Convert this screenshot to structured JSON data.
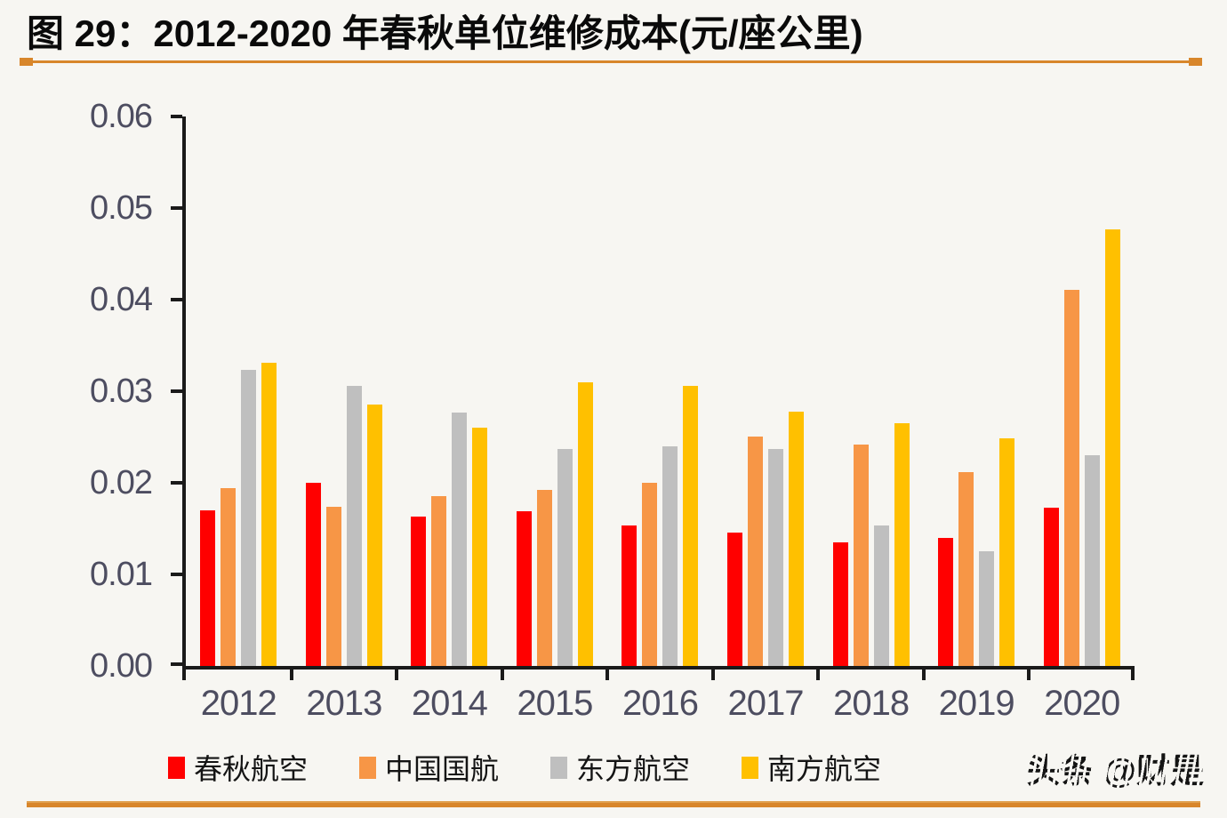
{
  "header": {
    "title": "图 29：2012-2020 年春秋单位维修成本(元/座公里)"
  },
  "watermark": {
    "text": "头条 @财是"
  },
  "colors": {
    "accent_rule": "#D8862B",
    "axis": "#1A1A1A",
    "tick_label": "#4D4D60",
    "background": "#F7F6F2",
    "series_red": "#FF0000",
    "series_orange": "#F79646",
    "series_gray": "#BFBFBF",
    "series_yellow": "#FFC000"
  },
  "chart_data": {
    "type": "bar",
    "title": "2012-2020 年春秋单位维修成本(元/座公里)",
    "xlabel": "",
    "ylabel": "",
    "categories": [
      "2012",
      "2013",
      "2014",
      "2015",
      "2016",
      "2017",
      "2018",
      "2019",
      "2020"
    ],
    "series": [
      {
        "name": "春秋航空",
        "color": "#FF0000",
        "values": [
          0.017,
          0.02,
          0.0163,
          0.0169,
          0.0153,
          0.0146,
          0.0135,
          0.014,
          0.0173
        ]
      },
      {
        "name": "中国国航",
        "color": "#F79646",
        "values": [
          0.0194,
          0.0174,
          0.0185,
          0.0192,
          0.02,
          0.0251,
          0.0242,
          0.0212,
          0.0411
        ]
      },
      {
        "name": "东方航空",
        "color": "#BFBFBF",
        "values": [
          0.0323,
          0.0306,
          0.0277,
          0.0237,
          0.024,
          0.0237,
          0.0153,
          0.0125,
          0.023
        ]
      },
      {
        "name": "南方航空",
        "color": "#FFC000",
        "values": [
          0.0331,
          0.0285,
          0.026,
          0.031,
          0.0306,
          0.0278,
          0.0265,
          0.0249,
          0.0477
        ]
      }
    ],
    "ylim": [
      0,
      0.06
    ],
    "yticks": [
      "0.00",
      "0.01",
      "0.02",
      "0.03",
      "0.04",
      "0.05",
      "0.06"
    ],
    "grid": false,
    "legend_position": "bottom"
  }
}
